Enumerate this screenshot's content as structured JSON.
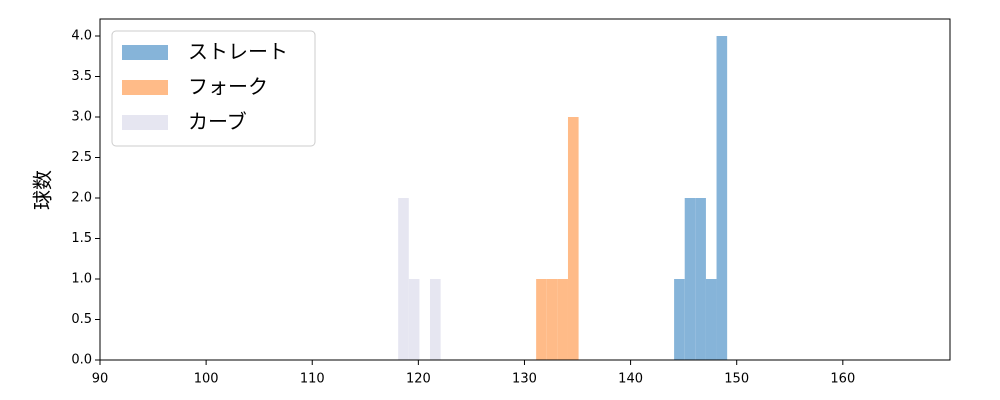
{
  "chart_data": {
    "type": "histogram",
    "y_label": "球数",
    "xlim": [
      90,
      170.1
    ],
    "xticks": [
      90,
      100,
      110,
      120,
      130,
      140,
      150,
      160
    ],
    "ylim": [
      0,
      4.21
    ],
    "yticks": [
      {
        "value": 0,
        "label": "0.0"
      },
      {
        "value": 0.5,
        "label": "0.5"
      },
      {
        "value": 1,
        "label": "1.0"
      },
      {
        "value": 1.5,
        "label": "1.5"
      },
      {
        "value": 2,
        "label": "2.0"
      },
      {
        "value": 2.5,
        "label": "2.5"
      },
      {
        "value": 3,
        "label": "3.0"
      },
      {
        "value": 3.5,
        "label": "3.5"
      },
      {
        "value": 4,
        "label": "4.0"
      }
    ],
    "legend": "upper left",
    "series": [
      {
        "name": "ストレート",
        "color": "#86b4d9",
        "bins": [
          144.1,
          145.1,
          146.1,
          147.1,
          148.1,
          149.1
        ],
        "values": [
          1,
          2,
          2,
          1,
          4
        ]
      },
      {
        "name": "フォーク",
        "color": "#ffbb88",
        "bins": [
          131.1,
          132.1,
          133.1,
          134.1,
          135.1
        ],
        "values": [
          1,
          1,
          1,
          3
        ]
      },
      {
        "name": "カーブ",
        "color": "#e6e6f1",
        "bins": [
          118.1,
          119.1,
          120.1,
          121.1,
          122.1
        ],
        "values": [
          2,
          1,
          0,
          1
        ]
      }
    ]
  }
}
